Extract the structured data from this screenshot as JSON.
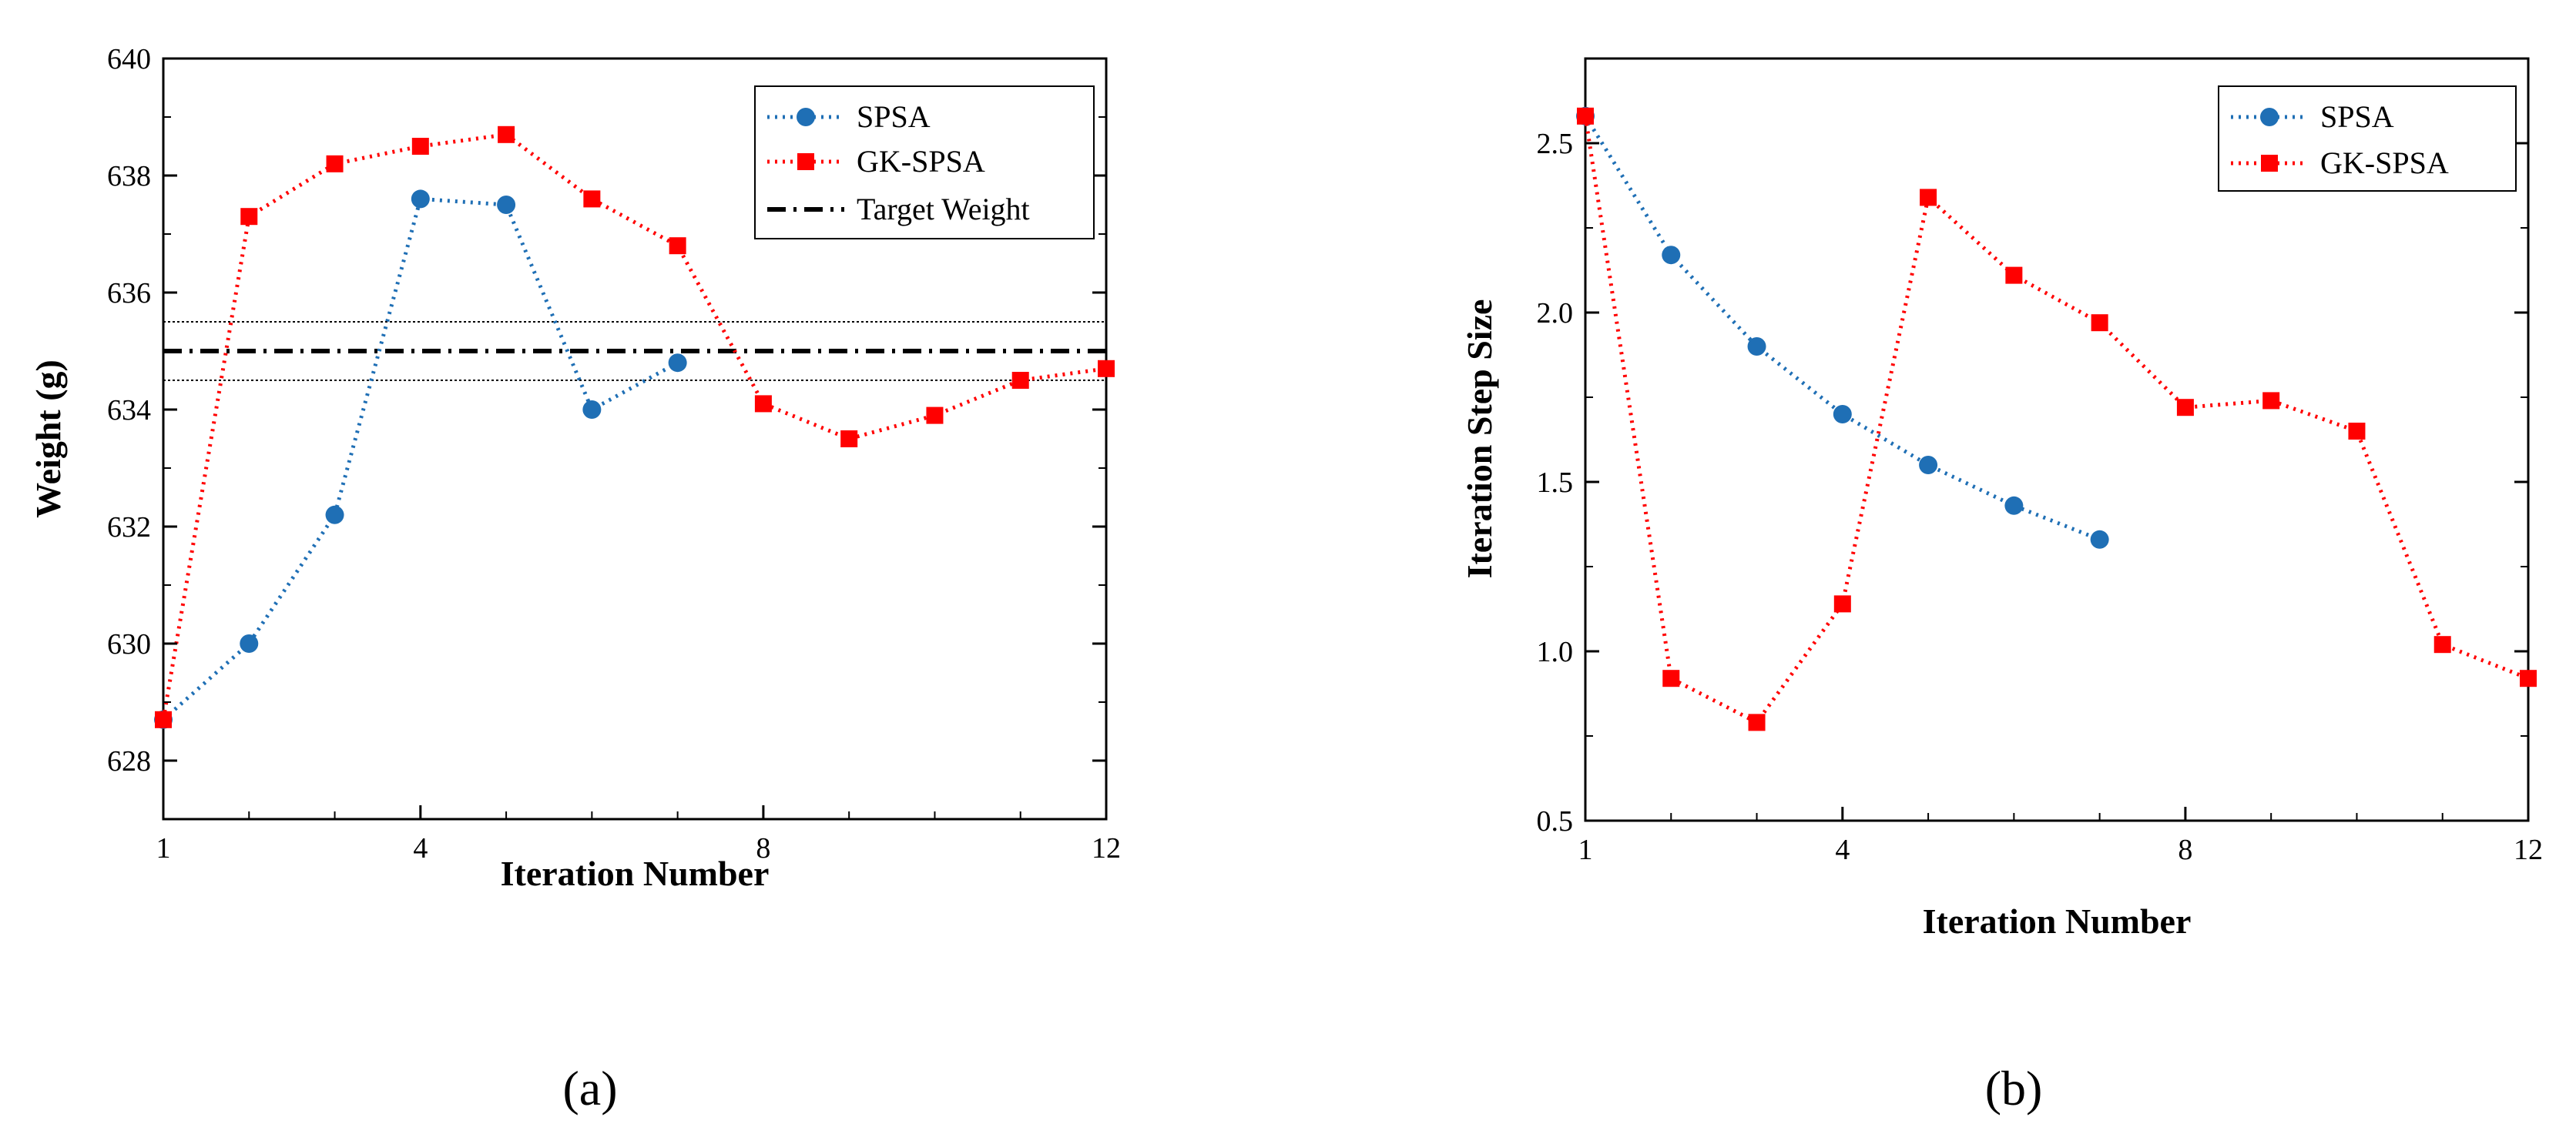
{
  "chart_data": [
    {
      "type": "line",
      "caption": "(a)",
      "xlabel": "Iteration Number",
      "ylabel": "Weight (g)",
      "xlim": [
        1,
        12
      ],
      "ylim": [
        627,
        640
      ],
      "xticks": [
        1,
        4,
        8,
        12
      ],
      "xminor": [
        2,
        3,
        5,
        6,
        7,
        9,
        10,
        11
      ],
      "yticks": [
        628,
        630,
        632,
        634,
        636,
        638,
        640
      ],
      "yminor": [
        629,
        631,
        633,
        635,
        637,
        639
      ],
      "legend_position": "top-right",
      "series": [
        {
          "name": "SPSA",
          "color": "#1f6fb5",
          "marker": "circle",
          "style": "dotted",
          "x": [
            1,
            2,
            3,
            4,
            5,
            6,
            7
          ],
          "y": [
            628.7,
            630.0,
            632.2,
            637.6,
            637.5,
            634.0,
            634.8
          ]
        },
        {
          "name": "GK-SPSA",
          "color": "#ff0000",
          "marker": "square",
          "style": "dotted",
          "x": [
            1,
            2,
            3,
            4,
            5,
            6,
            7,
            8,
            9,
            10,
            11,
            12
          ],
          "y": [
            628.7,
            637.3,
            638.2,
            638.5,
            638.7,
            637.6,
            636.8,
            634.1,
            633.5,
            633.9,
            634.5,
            634.7
          ]
        }
      ],
      "reference_lines": [
        {
          "name": "Target Weight",
          "y": 635.0,
          "style": "dash-dot",
          "color": "#000000",
          "in_legend": true
        },
        {
          "name": "Upper bound",
          "y": 635.5,
          "style": "dotted-thin",
          "color": "#000000",
          "in_legend": false
        },
        {
          "name": "Lower bound",
          "y": 634.5,
          "style": "dotted-thin",
          "color": "#000000",
          "in_legend": false
        }
      ]
    },
    {
      "type": "line",
      "caption": "(b)",
      "xlabel": "Iteration Number",
      "ylabel": "Iteration Step Size",
      "xlim": [
        1,
        12
      ],
      "ylim": [
        0.5,
        2.75
      ],
      "xticks": [
        1,
        4,
        8,
        12
      ],
      "xminor": [
        2,
        3,
        5,
        6,
        7,
        9,
        10,
        11
      ],
      "yticks": [
        0.5,
        1.0,
        1.5,
        2.0,
        2.5
      ],
      "yticklabels": [
        "0.5",
        "1.0",
        "1.5",
        "2.0",
        "2.5"
      ],
      "yminor": [
        0.75,
        1.25,
        1.75,
        2.25
      ],
      "legend_position": "top-right",
      "series": [
        {
          "name": "SPSA",
          "color": "#1f6fb5",
          "marker": "circle",
          "style": "dotted",
          "x": [
            1,
            2,
            3,
            4,
            5,
            6,
            7
          ],
          "y": [
            2.58,
            2.17,
            1.9,
            1.7,
            1.55,
            1.43,
            1.33
          ]
        },
        {
          "name": "GK-SPSA",
          "color": "#ff0000",
          "marker": "square",
          "style": "dotted",
          "x": [
            1,
            2,
            3,
            4,
            5,
            6,
            7,
            8,
            9,
            10,
            11,
            12
          ],
          "y": [
            2.58,
            0.92,
            0.79,
            1.14,
            2.34,
            2.11,
            1.97,
            1.72,
            1.74,
            1.65,
            1.02,
            0.92
          ]
        }
      ],
      "reference_lines": []
    }
  ]
}
